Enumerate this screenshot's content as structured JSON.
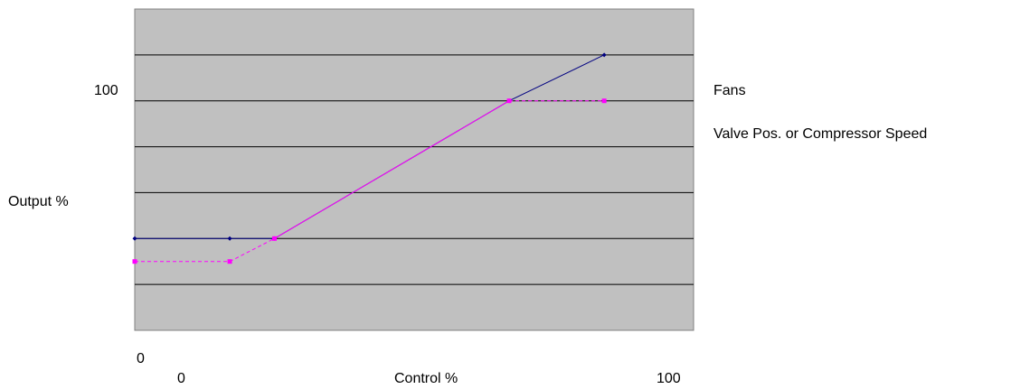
{
  "chart_data": {
    "type": "line",
    "title": "",
    "xlabel": "Control %",
    "ylabel": "Output %",
    "x_tick_labels": [
      "0",
      "100"
    ],
    "y_tick_labels": [
      "0",
      "100"
    ],
    "xlim": [
      0,
      100
    ],
    "ylim": [
      -20,
      120
    ],
    "grid": "horizontal",
    "legend_position": "right",
    "series": [
      {
        "name": "Fans",
        "color": "#000080",
        "line_style": "solid",
        "marker": "diamond",
        "points": [
          [
            0,
            20
          ],
          [
            17,
            20
          ],
          [
            25,
            20
          ],
          [
            67,
            80
          ],
          [
            84,
            100
          ]
        ]
      },
      {
        "name": "Valve Pos. or Compressor Speed",
        "color": "#ff00ff",
        "line_style": "mixed",
        "marker": "square",
        "points": [
          [
            0,
            10
          ],
          [
            17,
            10
          ],
          [
            25,
            20
          ],
          [
            67,
            80
          ],
          [
            84,
            80
          ]
        ],
        "segment_styles": [
          "dashed",
          "dashed",
          "solid",
          "dashed"
        ]
      }
    ],
    "plot_background": "#c0c0c0",
    "grid_color": "#000000"
  }
}
